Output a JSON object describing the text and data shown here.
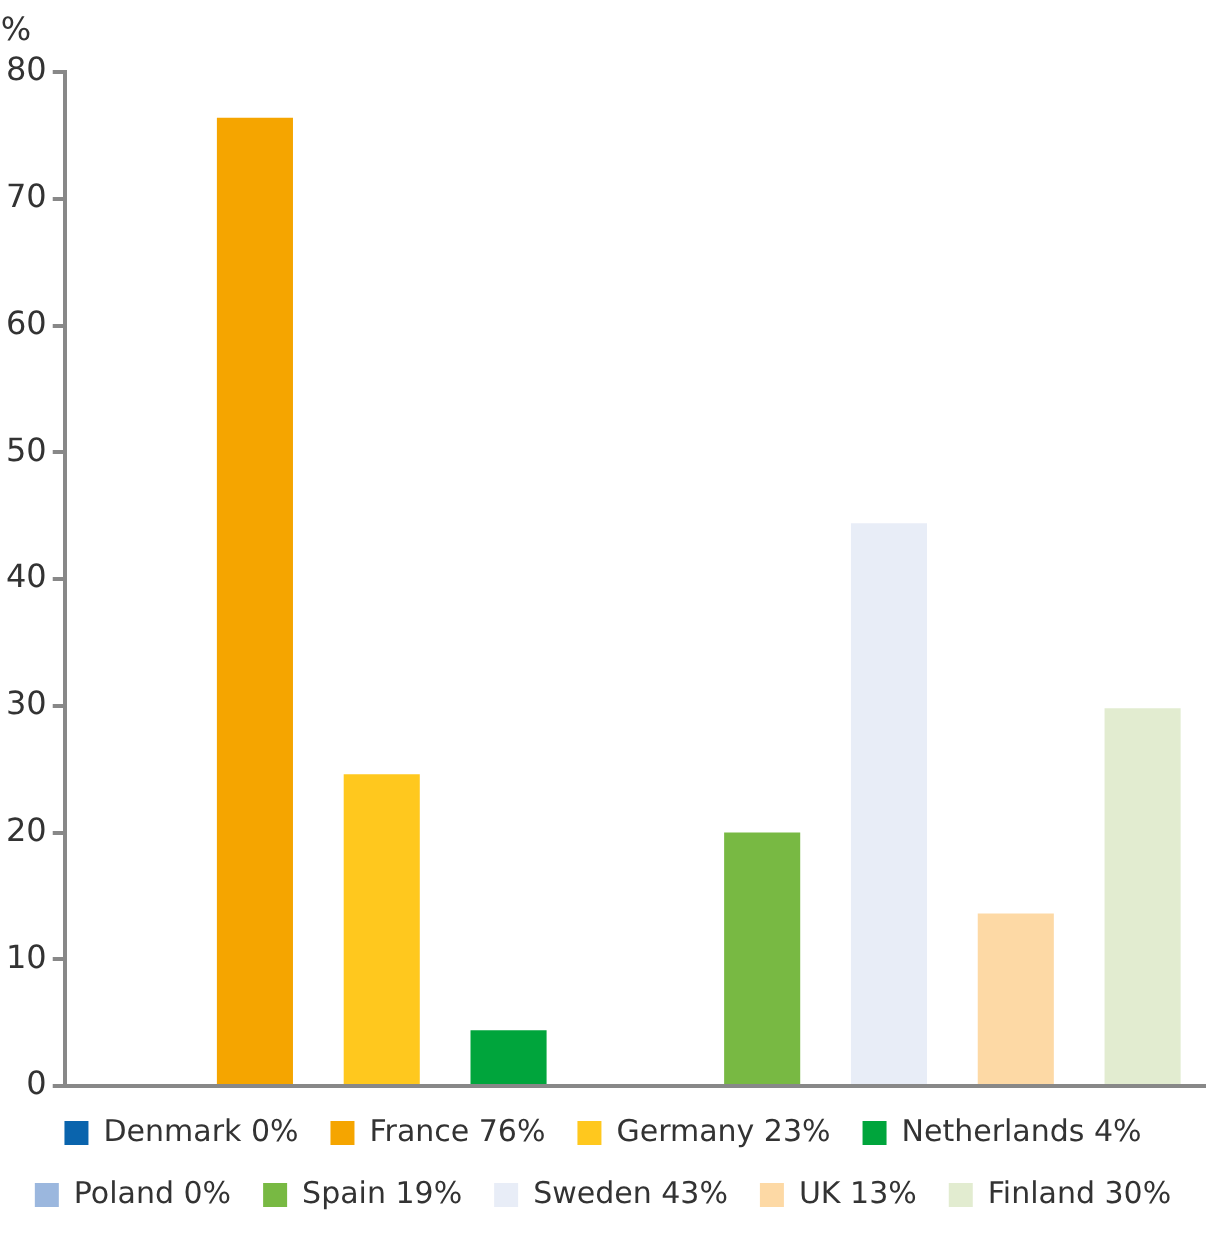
{
  "chart_data": {
    "type": "bar",
    "ylabel": "%",
    "categories": [
      null
    ],
    "series": [
      {
        "name": "Denmark 0%",
        "color": "#0a64ad",
        "values": [
          0
        ]
      },
      {
        "name": "France 76%",
        "color": "#f5a500",
        "values": [
          76.4
        ]
      },
      {
        "name": "Germany 23%",
        "color": "#ffc81e",
        "values": [
          24.6
        ]
      },
      {
        "name": "Netherlands 4%",
        "color": "#00a53c",
        "values": [
          4.4
        ]
      },
      {
        "name": "Poland 0%",
        "color": "#9bb7de",
        "values": [
          0
        ]
      },
      {
        "name": "Spain 19%",
        "color": "#78b943",
        "values": [
          20.0
        ]
      },
      {
        "name": "Sweden 43%",
        "color": "#e8edf7",
        "values": [
          44.4
        ]
      },
      {
        "name": "UK 13%",
        "color": "#fdd9a5",
        "values": [
          13.6
        ]
      },
      {
        "name": "Finland 30%",
        "color": "#e2ecd0",
        "values": [
          29.8
        ]
      }
    ],
    "ylim": [
      0,
      80
    ],
    "yticks": [
      0,
      10,
      20,
      30,
      40,
      50,
      60,
      70,
      80
    ],
    "grid": false,
    "legend": "bottom",
    "tick_labels": "y"
  }
}
